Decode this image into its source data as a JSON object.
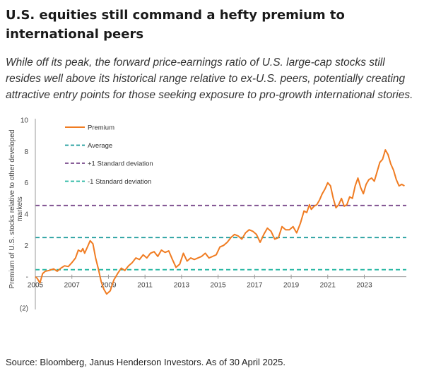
{
  "header": {
    "title": "U.S. equities still command a hefty premium to international peers",
    "subtitle": "While off its peak, the forward price-earnings ratio of U.S. large-cap stocks still resides well above its historical range relative to ex-U.S. peers, potentially creating attractive entry points for those seeking exposure to pro-growth international stories."
  },
  "footer": {
    "source": "Source: Bloomberg, Janus Henderson Investors. As of 30 April 2025."
  },
  "colors": {
    "premium": "#f07c22",
    "average": "#1a9a9a",
    "plus1sd": "#7a4a8c",
    "minus1sd": "#22b5a0",
    "axis": "#999999",
    "text": "#444444"
  },
  "chart_data": {
    "type": "line",
    "ylabel": "Premium of U.S. stocks relative to other developed markets",
    "xlabel": "",
    "ylim": [
      -2,
      10
    ],
    "xlim": [
      2005,
      2025.3
    ],
    "y_ticks": [
      {
        "v": 10,
        "label": "10"
      },
      {
        "v": 8,
        "label": "8"
      },
      {
        "v": 6,
        "label": "6"
      },
      {
        "v": 4,
        "label": "4"
      },
      {
        "v": 2,
        "label": "2"
      },
      {
        "v": 0,
        "label": "-"
      },
      {
        "v": -2,
        "label": "(2)"
      }
    ],
    "x_ticks": [
      2005,
      2007,
      2009,
      2011,
      2013,
      2015,
      2017,
      2019,
      2021,
      2023
    ],
    "x_tick_labels": [
      "2005",
      "2007",
      "2009",
      "2011",
      "2013",
      "2015",
      "2017",
      "2019",
      "2021",
      "2023"
    ],
    "legend": [
      {
        "key": "premium",
        "label": "Premium",
        "style": "solid"
      },
      {
        "key": "average",
        "label": "Average",
        "style": "dashed"
      },
      {
        "key": "plus1sd",
        "label": "+1 Standard deviation",
        "style": "dashed"
      },
      {
        "key": "minus1sd",
        "label": "-1 Standard deviation",
        "style": "dashed"
      }
    ],
    "reference_lines": {
      "average": 2.5,
      "plus1sd": 4.55,
      "minus1sd": 0.45
    },
    "series": [
      {
        "key": "premium",
        "name": "Premium",
        "x": [
          2005.0,
          2005.1,
          2005.25,
          2005.4,
          2005.55,
          2005.75,
          2006.0,
          2006.2,
          2006.4,
          2006.6,
          2006.8,
          2007.0,
          2007.2,
          2007.35,
          2007.5,
          2007.6,
          2007.7,
          2007.85,
          2008.0,
          2008.15,
          2008.3,
          2008.45,
          2008.6,
          2008.75,
          2008.9,
          2009.1,
          2009.3,
          2009.5,
          2009.7,
          2009.9,
          2010.1,
          2010.3,
          2010.5,
          2010.7,
          2010.9,
          2011.1,
          2011.3,
          2011.5,
          2011.7,
          2011.9,
          2012.1,
          2012.3,
          2012.5,
          2012.7,
          2012.9,
          2013.1,
          2013.3,
          2013.5,
          2013.7,
          2013.9,
          2014.1,
          2014.3,
          2014.5,
          2014.7,
          2014.9,
          2015.1,
          2015.3,
          2015.5,
          2015.7,
          2015.9,
          2016.1,
          2016.3,
          2016.5,
          2016.7,
          2016.9,
          2017.1,
          2017.3,
          2017.5,
          2017.7,
          2017.9,
          2018.1,
          2018.3,
          2018.5,
          2018.7,
          2018.9,
          2019.1,
          2019.3,
          2019.5,
          2019.7,
          2019.85,
          2020.0,
          2020.1,
          2020.25,
          2020.4,
          2020.55,
          2020.7,
          2020.85,
          2021.0,
          2021.15,
          2021.3,
          2021.45,
          2021.6,
          2021.75,
          2021.9,
          2022.05,
          2022.2,
          2022.35,
          2022.5,
          2022.65,
          2022.8,
          2022.95,
          2023.1,
          2023.25,
          2023.4,
          2023.55,
          2023.7,
          2023.85,
          2024.0,
          2024.15,
          2024.3,
          2024.45,
          2024.6,
          2024.75,
          2024.9,
          2025.05,
          2025.2
        ],
        "values": [
          0.0,
          -0.1,
          -0.4,
          0.2,
          0.35,
          0.4,
          0.5,
          0.35,
          0.55,
          0.7,
          0.65,
          0.9,
          1.2,
          1.7,
          1.6,
          1.8,
          1.5,
          1.9,
          2.3,
          2.1,
          1.2,
          0.5,
          -0.3,
          -0.8,
          -1.1,
          -0.9,
          -0.2,
          0.2,
          0.55,
          0.4,
          0.7,
          0.9,
          1.2,
          1.1,
          1.4,
          1.2,
          1.5,
          1.6,
          1.3,
          1.7,
          1.55,
          1.65,
          1.1,
          0.6,
          0.8,
          1.5,
          1.0,
          1.2,
          1.1,
          1.2,
          1.3,
          1.5,
          1.2,
          1.3,
          1.4,
          1.9,
          2.0,
          2.2,
          2.5,
          2.7,
          2.6,
          2.4,
          2.8,
          3.0,
          2.9,
          2.7,
          2.2,
          2.7,
          3.1,
          2.9,
          2.4,
          2.5,
          3.2,
          3.0,
          3.0,
          3.2,
          2.8,
          3.4,
          4.2,
          4.1,
          4.6,
          4.3,
          4.5,
          4.6,
          4.9,
          5.3,
          5.6,
          6.0,
          5.8,
          5.0,
          4.4,
          4.6,
          5.0,
          4.5,
          4.6,
          5.1,
          5.0,
          5.8,
          6.3,
          5.7,
          5.3,
          5.9,
          6.2,
          6.3,
          6.1,
          6.7,
          7.3,
          7.5,
          8.1,
          7.8,
          7.2,
          6.8,
          6.2,
          5.8,
          5.9,
          5.8
        ]
      }
    ]
  }
}
